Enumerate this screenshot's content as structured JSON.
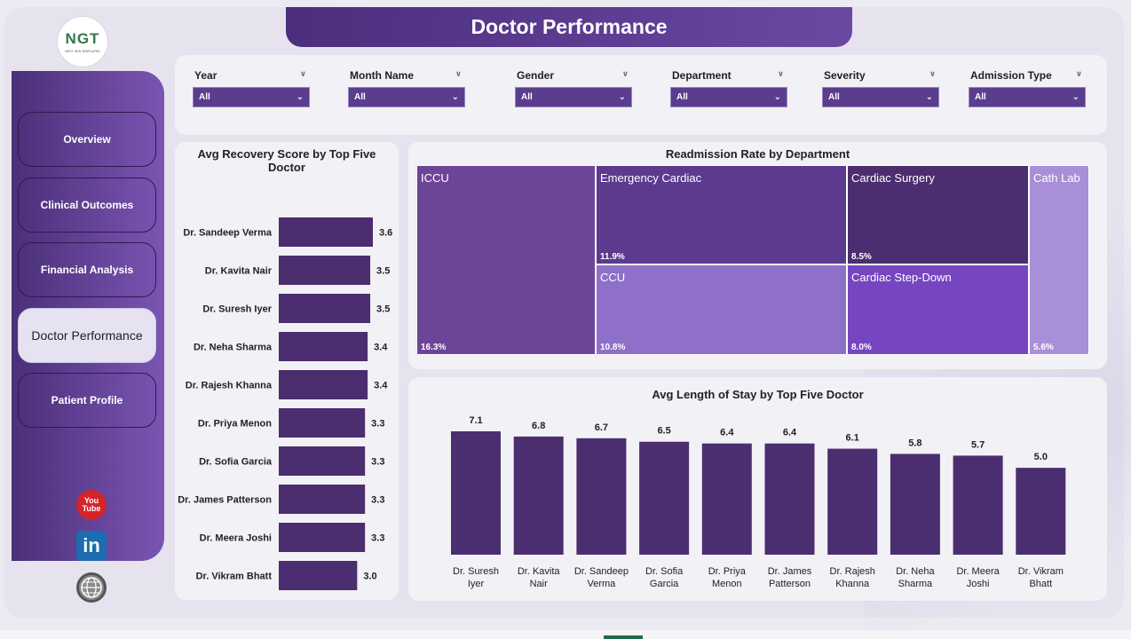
{
  "title": "Doctor Performance",
  "logo": {
    "text": "NGT",
    "sub": "NEXT GEN TEMPLATES"
  },
  "nav": [
    {
      "label": "Overview",
      "active": false
    },
    {
      "label": "Clinical Outcomes",
      "active": false
    },
    {
      "label": "Financial Analysis",
      "active": false
    },
    {
      "label": "Doctor Performance",
      "active": true
    },
    {
      "label": "Patient Profile",
      "active": false
    }
  ],
  "social": {
    "youtube": "You\nTube",
    "linkedin": "in"
  },
  "filters": [
    {
      "label": "Year",
      "value": "All"
    },
    {
      "label": "Month Name",
      "value": "All"
    },
    {
      "label": "Gender",
      "value": "All"
    },
    {
      "label": "Department",
      "value": "All"
    },
    {
      "label": "Severity",
      "value": "All"
    },
    {
      "label": "Admission Type",
      "value": "All"
    }
  ],
  "colors": {
    "accent": "#4a2f78",
    "bar": "#4b2e6f",
    "tiles": [
      "#6d4598",
      "#5c3a8e",
      "#4b2e6f",
      "#8e6fc9",
      "#7546c0",
      "#a98ed8"
    ]
  },
  "chart_data": [
    {
      "type": "bar",
      "orientation": "horizontal",
      "title": "Avg Recovery Score by Top Five Doctor",
      "categories": [
        "Dr. Sandeep Verma",
        "Dr. Kavita Nair",
        "Dr. Suresh Iyer",
        "Dr. Neha Sharma",
        "Dr. Rajesh Khanna",
        "Dr. Priya Menon",
        "Dr. Sofia Garcia",
        "Dr. James Patterson",
        "Dr. Meera Joshi",
        "Dr. Vikram Bhatt"
      ],
      "values": [
        3.6,
        3.5,
        3.5,
        3.4,
        3.4,
        3.3,
        3.3,
        3.3,
        3.3,
        3.0
      ],
      "labels": [
        "3.6",
        "3.5",
        "3.5",
        "3.4",
        "3.4",
        "3.3",
        "3.3",
        "3.3",
        "3.3",
        "3.0"
      ]
    },
    {
      "type": "treemap",
      "title": "Readmission Rate by Department",
      "categories": [
        "ICCU",
        "Emergency Cardiac",
        "Cardiac Surgery",
        "CCU",
        "Cardiac Step-Down",
        "Cath Lab"
      ],
      "values": [
        16.3,
        11.9,
        8.5,
        10.8,
        8.0,
        5.6
      ],
      "labels": [
        "16.3%",
        "11.9%",
        "8.5%",
        "10.8%",
        "8.0%",
        "5.6%"
      ]
    },
    {
      "type": "bar",
      "orientation": "vertical",
      "title": "Avg Length of Stay by Top Five Doctor",
      "categories": [
        "Dr. Suresh Iyer",
        "Dr. Kavita Nair",
        "Dr. Sandeep Verma",
        "Dr. Sofia Garcia",
        "Dr. Priya Menon",
        "Dr. James Patterson",
        "Dr. Rajesh Khanna",
        "Dr. Neha Sharma",
        "Dr. Meera Joshi",
        "Dr. Vikram Bhatt"
      ],
      "values": [
        7.1,
        6.8,
        6.7,
        6.5,
        6.4,
        6.4,
        6.1,
        5.8,
        5.7,
        5.0
      ],
      "labels": [
        "7.1",
        "6.8",
        "6.7",
        "6.5",
        "6.4",
        "6.4",
        "6.1",
        "5.8",
        "5.7",
        "5.0"
      ]
    }
  ]
}
